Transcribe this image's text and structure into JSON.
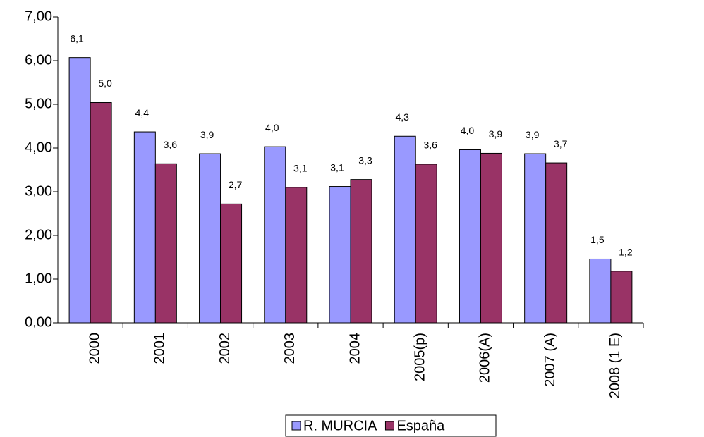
{
  "chart_data": {
    "type": "bar",
    "categories": [
      "2000",
      "2001",
      "2002",
      "2003",
      "2004",
      "2005(p)",
      "2006(A)",
      "2007 (A)",
      "2008 (1 E)"
    ],
    "series": [
      {
        "name": "R. MURCIA",
        "color": "#9999ff",
        "label_color": "#000000",
        "values": [
          6.07,
          4.37,
          3.87,
          4.03,
          3.12,
          4.27,
          3.96,
          3.87,
          1.46
        ],
        "value_labels": [
          "6,1",
          "4,4",
          "3,9",
          "4,0",
          "3,1",
          "4,3",
          "4,0",
          "3,9",
          "1,5"
        ]
      },
      {
        "name": "España",
        "color": "#993366",
        "label_color": "#993366",
        "values": [
          5.04,
          3.64,
          2.72,
          3.1,
          3.28,
          3.63,
          3.88,
          3.66,
          1.18
        ],
        "value_labels": [
          "5,0",
          "3,6",
          "2,7",
          "3,1",
          "3,3",
          "3,6",
          "3,9",
          "3,7",
          "1,2"
        ]
      }
    ],
    "ylim": [
      0,
      7
    ],
    "yticks": [
      {
        "value": 0,
        "label": "0,00"
      },
      {
        "value": 1,
        "label": "1,00"
      },
      {
        "value": 2,
        "label": "2,00"
      },
      {
        "value": 3,
        "label": "3,00"
      },
      {
        "value": 4,
        "label": "4,00"
      },
      {
        "value": 5,
        "label": "5,00"
      },
      {
        "value": 6,
        "label": "6,00"
      },
      {
        "value": 7,
        "label": "7,00"
      }
    ],
    "grid": false,
    "legend": "bottom"
  }
}
